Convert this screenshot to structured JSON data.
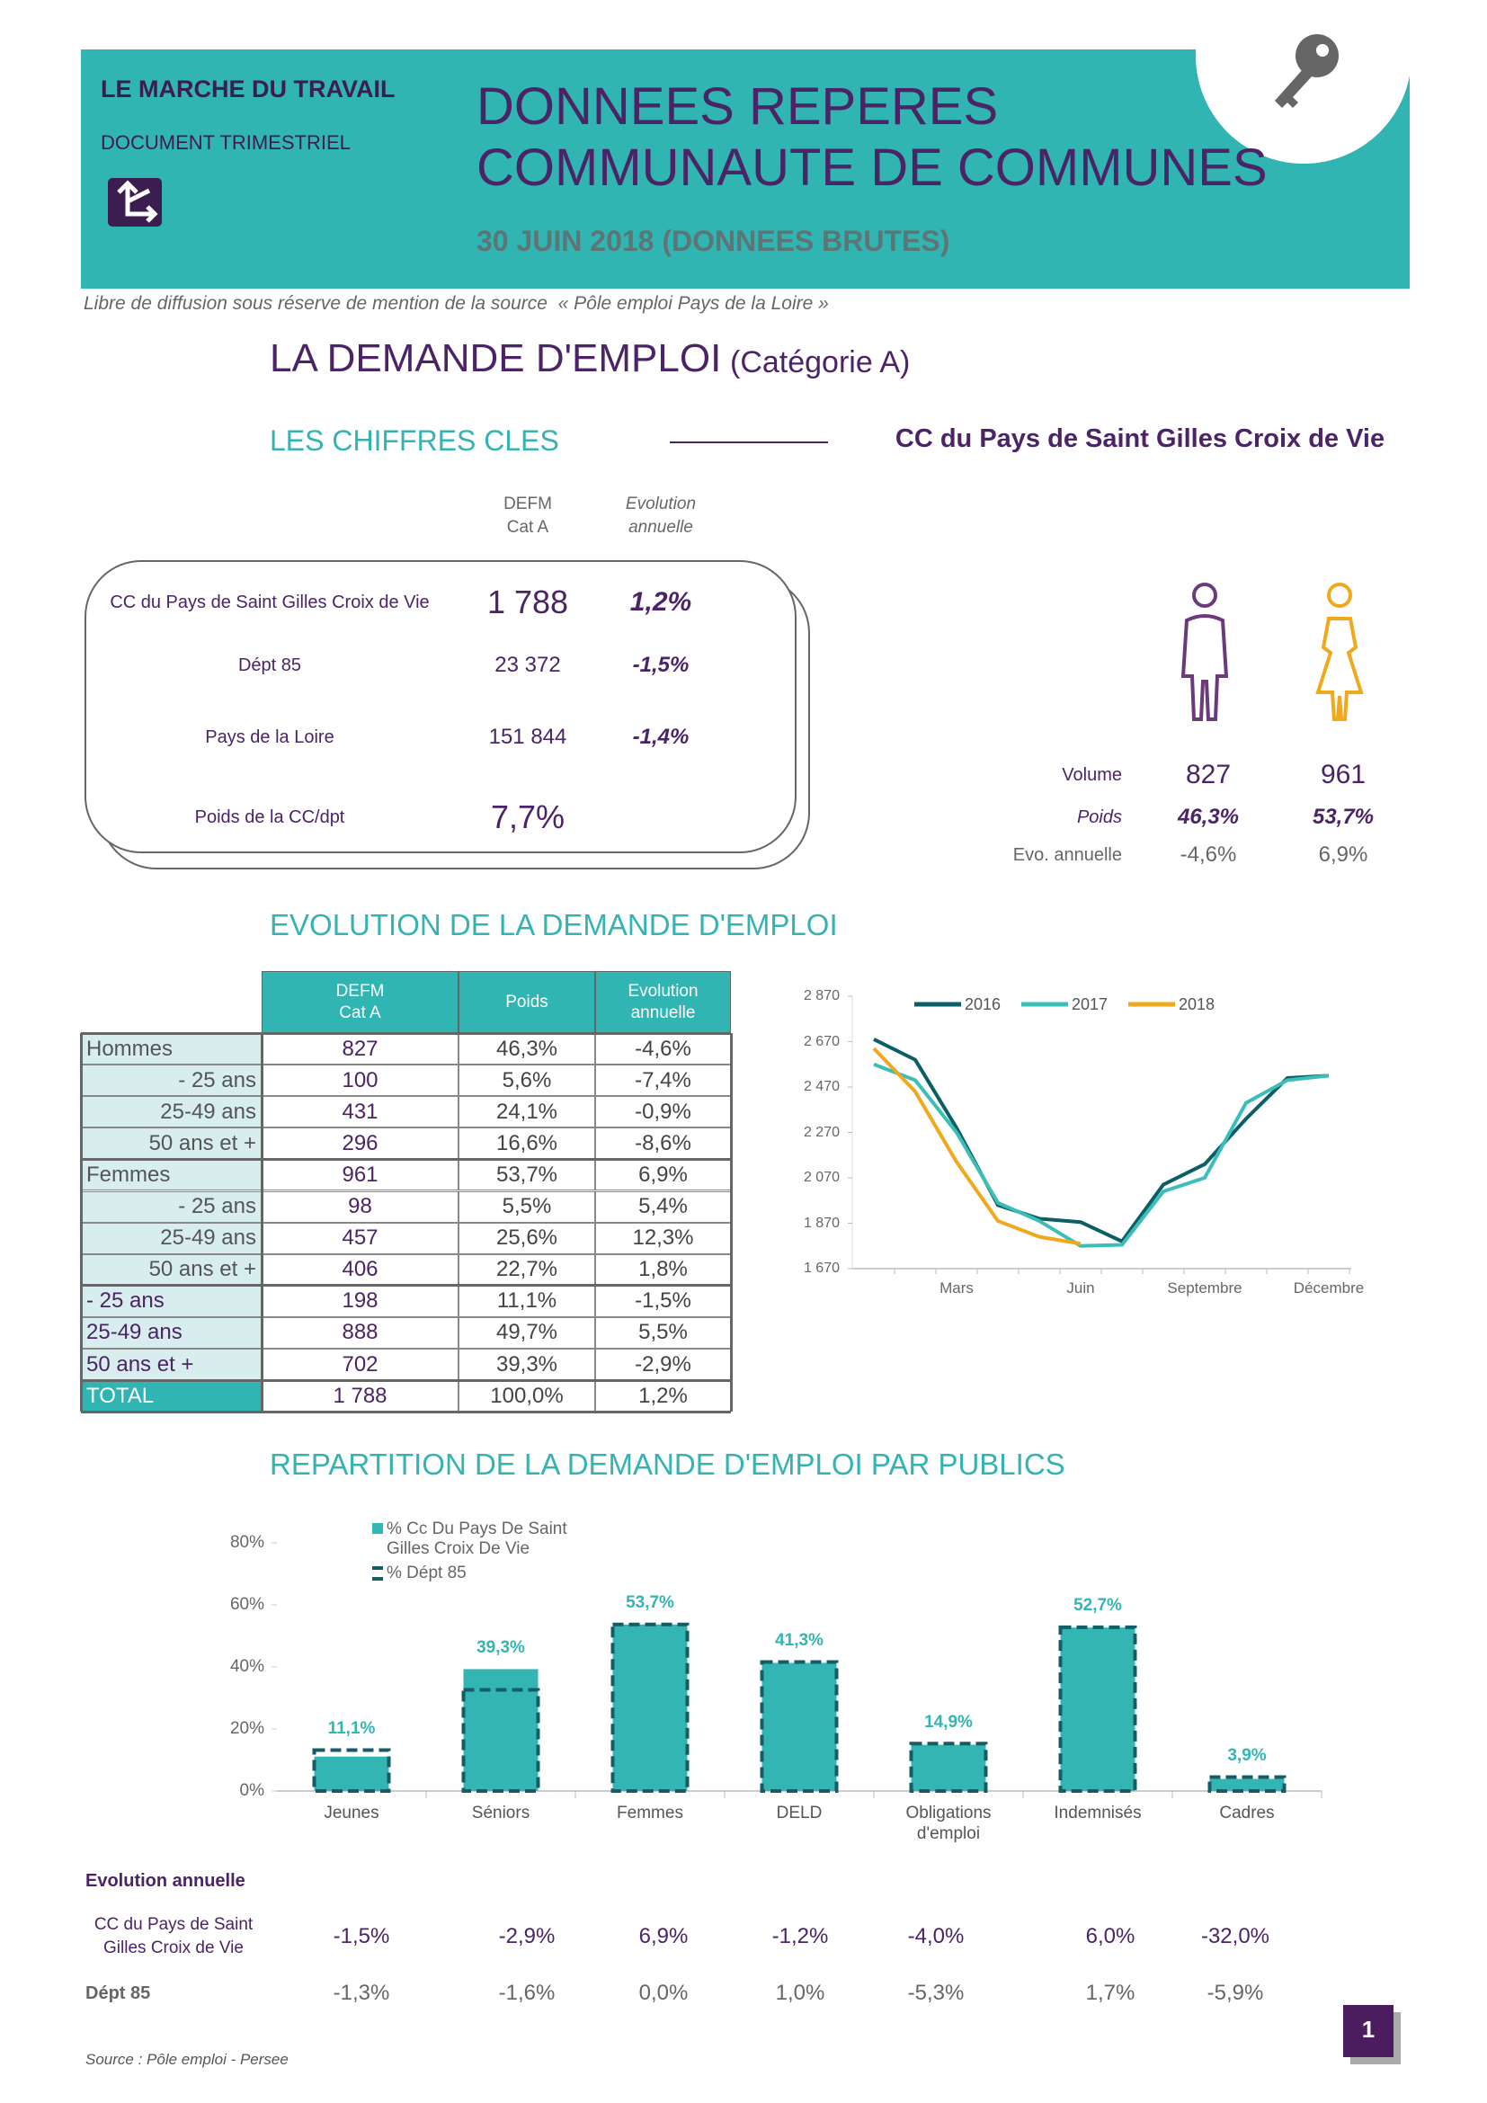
{
  "header": {
    "kicker": "LE MARCHE DU TRAVAIL",
    "doc_type": "DOCUMENT TRIMESTRIEL",
    "title": [
      "DONNEES REPERES",
      "COMMUNAUTE DE COMMUNES"
    ],
    "date": "30 JUIN 2018 (DONNEES BRUTES)"
  },
  "license": "Libre de diffusion sous réserve de mention de la source  « Pôle emploi Pays de la Loire »",
  "section": {
    "title": "LA DEMANDE D'EMPLOI",
    "subtitle": "(Catégorie A)"
  },
  "key_figures": {
    "title": "LES CHIFFRES CLES",
    "area": "CC du Pays de Saint Gilles Croix de Vie",
    "columns": [
      [
        "DEFM",
        "Cat A"
      ],
      [
        "Evolution",
        "annuelle"
      ]
    ],
    "rows": [
      {
        "label": "CC du Pays de Saint Gilles Croix de Vie",
        "defm": "1 788",
        "evolution": "1,2%"
      },
      {
        "label": "Dépt 85",
        "defm": "23 372",
        "evolution": "-1,5%"
      },
      {
        "label": "Pays de la Loire",
        "defm": "151 844",
        "evolution": "-1,4%"
      },
      {
        "label": "Poids de la CC/dpt",
        "defm": "7,7%"
      }
    ]
  },
  "gender": {
    "labels": [
      "Volume",
      "Poids",
      "Evo. annuelle"
    ],
    "men": [
      "827",
      "46,3%",
      "-4,6%"
    ],
    "women": [
      "961",
      "53,7%",
      "6,9%"
    ]
  },
  "evolution_table": {
    "title": "EVOLUTION DE LA DEMANDE D'EMPLOI",
    "header": [
      [
        "DEFM",
        "Cat A"
      ],
      [
        "Poids"
      ],
      [
        "Evolution",
        "annuelle"
      ]
    ],
    "rows": [
      [
        "Hommes",
        "827",
        "46,3%",
        "-4,6%"
      ],
      [
        "- 25 ans",
        "100",
        "5,6%",
        "-7,4%"
      ],
      [
        "25-49 ans",
        "431",
        "24,1%",
        "-0,9%"
      ],
      [
        "50 ans et +",
        "296",
        "16,6%",
        "-8,6%"
      ],
      [
        "Femmes",
        "961",
        "53,7%",
        "6,9%"
      ],
      [
        "- 25 ans",
        "98",
        "5,5%",
        "5,4%"
      ],
      [
        "25-49 ans",
        "457",
        "25,6%",
        "12,3%"
      ],
      [
        "50 ans et +",
        "406",
        "22,7%",
        "1,8%"
      ],
      [
        "- 25 ans",
        "198",
        "11,1%",
        "-1,5%"
      ],
      [
        "25-49 ans",
        "888",
        "49,7%",
        "5,5%"
      ],
      [
        "50 ans et +",
        "702",
        "39,3%",
        "-2,9%"
      ],
      [
        "TOTAL",
        "1 788",
        "100,0%",
        "1,2%"
      ]
    ]
  },
  "chart_data": [
    {
      "type": "line",
      "categories": [
        null,
        null,
        "Mars",
        null,
        null,
        "Juin",
        null,
        null,
        "Septembre",
        null,
        null,
        "Décembre"
      ],
      "ylim": [
        1670,
        2870
      ],
      "yticks": [
        {
          "value": 1670,
          "label": "1 670"
        },
        {
          "value": 1870,
          "label": "1 870"
        },
        {
          "value": 2070,
          "label": "2 070"
        },
        {
          "value": 2270,
          "label": "2 270"
        },
        {
          "value": 2470,
          "label": "2 470"
        },
        {
          "value": 2670,
          "label": "2 670"
        },
        {
          "value": 2870,
          "label": "2 870"
        }
      ],
      "grid": false,
      "legend": "top",
      "series": [
        {
          "name": "2016",
          "color": "#0b5d66",
          "values": [
            2680,
            2590,
            2290,
            1950,
            1890,
            1875,
            1790,
            2040,
            2130,
            2330,
            2510,
            2520
          ]
        },
        {
          "name": "2017",
          "color": "#3bbdb8",
          "values": [
            2570,
            2500,
            2270,
            1960,
            1880,
            1770,
            1775,
            2010,
            2070,
            2400,
            2500,
            2520
          ]
        },
        {
          "name": "2018",
          "color": "#f0a81c",
          "values": [
            2640,
            2450,
            2140,
            1880,
            1810,
            1780,
            null,
            null,
            null,
            null,
            null,
            null
          ]
        }
      ]
    },
    {
      "type": "bar",
      "title": "REPARTITION DE LA DEMANDE D'EMPLOI PAR PUBLICS",
      "categories": [
        "Jeunes",
        "Séniors",
        "Femmes",
        "DELD",
        "Obligations d'emploi",
        "Indemnisés",
        "Cadres"
      ],
      "ylim": [
        0,
        80
      ],
      "yticks": [
        {
          "value": 0,
          "label": "0%"
        },
        {
          "value": 20,
          "label": "20%"
        },
        {
          "value": 40,
          "label": "40%"
        },
        {
          "value": 60,
          "label": "60%"
        },
        {
          "value": 80,
          "label": "80%"
        }
      ],
      "grid": false,
      "legend": "top-left",
      "series": [
        {
          "name": "% Cc Du Pays De Saint Gilles Croix De Vie",
          "color": "#33b6b3",
          "values": [
            11.1,
            39.3,
            53.7,
            41.3,
            14.9,
            52.7,
            3.9
          ],
          "value_labels": [
            "11,1%",
            "39,3%",
            "53,7%",
            "41,3%",
            "14,9%",
            "52,7%",
            "3,9%"
          ]
        },
        {
          "name": "% Dépt 85",
          "color": "#145c66",
          "values": [
            13.2,
            32.6,
            53.7,
            41.6,
            15.3,
            52.8,
            4.5
          ]
        }
      ]
    }
  ],
  "annual": {
    "title": "Evolution annuelle",
    "rows": [
      {
        "label": "CC du Pays de Saint Gilles Croix de Vie",
        "values": [
          "-1,5%",
          "-2,9%",
          "6,9%",
          "-1,2%",
          "-4,0%",
          "6,0%",
          "-32,0%"
        ]
      },
      {
        "label": "Dépt 85",
        "values": [
          "-1,3%",
          "-1,6%",
          "0,0%",
          "1,0%",
          "-5,3%",
          "1,7%",
          "-5,9%"
        ]
      }
    ]
  },
  "source": "Source : Pôle emploi - Persee",
  "page": "1"
}
